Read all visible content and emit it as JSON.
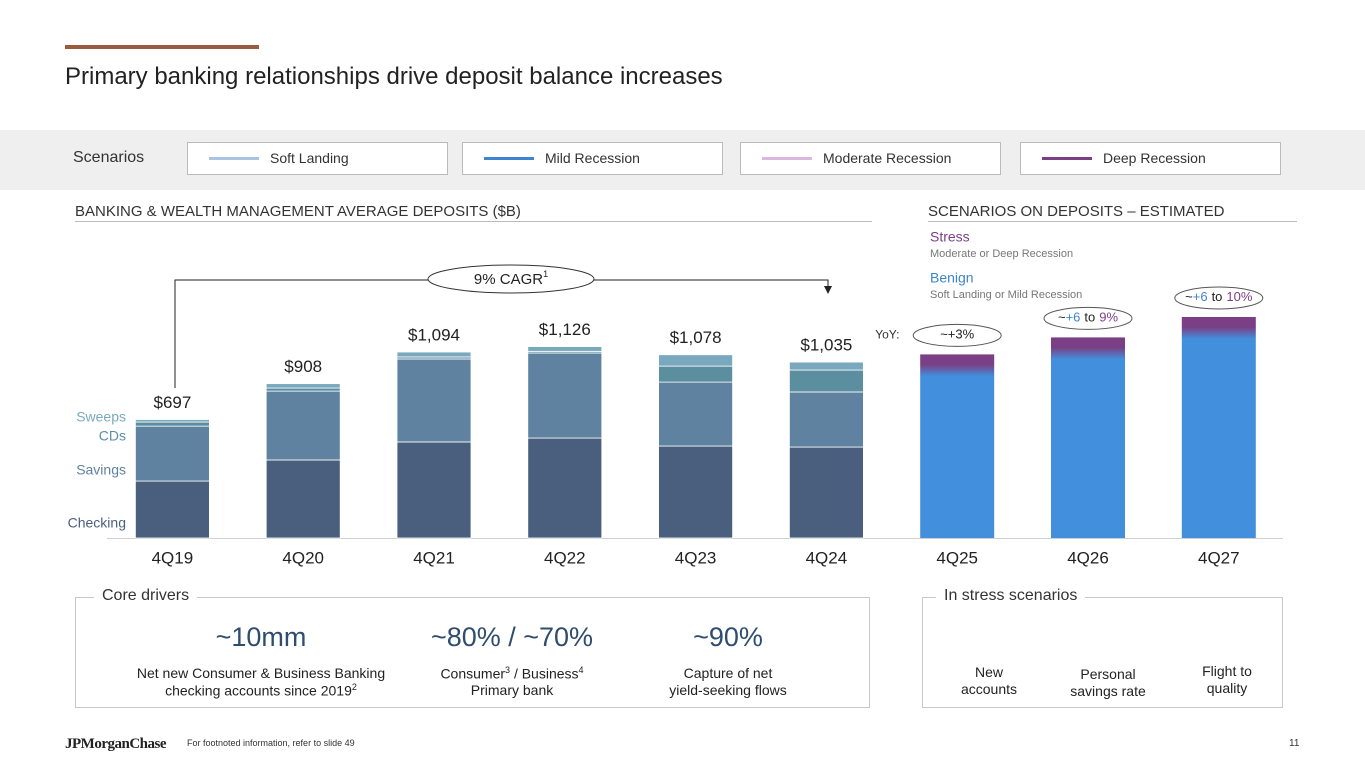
{
  "header": {
    "title": "Primary banking relationships drive deposit balance increases"
  },
  "scenarios": {
    "label": "Scenarios",
    "items": [
      {
        "name": "Soft Landing",
        "color": "#a9c4e0"
      },
      {
        "name": "Mild Recession",
        "color": "#3d85d0"
      },
      {
        "name": "Moderate Recession",
        "color": "#dbb6df"
      },
      {
        "name": "Deep Recession",
        "color": "#7b3f85"
      }
    ]
  },
  "chart_data": {
    "type": "bar",
    "stacked": true,
    "title": "BANKING & WEALTH MANAGEMENT AVERAGE DEPOSITS ($B)",
    "categories": [
      "4Q19",
      "4Q20",
      "4Q21",
      "4Q22",
      "4Q23",
      "4Q24",
      "4Q25",
      "4Q26",
      "4Q27"
    ],
    "series": [
      {
        "name": "Checking",
        "color": "#4a5f7e",
        "values": [
          335,
          459,
          565,
          588,
          541,
          535,
          null,
          null,
          null
        ]
      },
      {
        "name": "Savings",
        "color": "#5f82a0",
        "values": [
          323,
          405,
          488,
          500,
          376,
          324,
          null,
          null,
          null
        ]
      },
      {
        "name": "CDs",
        "color": "#5b8fa0",
        "values": [
          24,
          18,
          12,
          10,
          94,
          129,
          null,
          null,
          null
        ]
      },
      {
        "name": "Sweeps",
        "color": "#7aa9bf",
        "values": [
          15,
          26,
          29,
          28,
          67,
          47,
          null,
          null,
          null
        ]
      }
    ],
    "totals": {
      "values": [
        697,
        908,
        1094,
        1126,
        1078,
        1035,
        null,
        null,
        null
      ],
      "value_labels": [
        "$697",
        "$908",
        "$1,094",
        "$1,126",
        "$1,078",
        "$1,035",
        null,
        null,
        null
      ]
    },
    "projection": {
      "title": "SCENARIOS ON DEPOSITS – ESTIMATED",
      "color": "#4290dd",
      "stress_color": "#7b3f85",
      "values": [
        null,
        null,
        null,
        null,
        null,
        null,
        1080,
        1180,
        1300
      ],
      "yoy_label": "YoY:",
      "yoy": [
        null,
        null,
        null,
        null,
        null,
        null,
        [
          {
            "text": "~+3%"
          }
        ],
        [
          {
            "text": "~"
          },
          {
            "text": "+6",
            "color": "#3d85d0"
          },
          {
            "text": "to"
          },
          {
            "text": "9%",
            "color": "#7b3f85"
          }
        ],
        [
          {
            "text": "~"
          },
          {
            "text": "+6",
            "color": "#3d85d0"
          },
          {
            "text": "to"
          },
          {
            "text": "10%",
            "color": "#7b3f85"
          }
        ]
      ]
    },
    "annotation": {
      "text": "9% CAGR",
      "sup": "1"
    },
    "legend": [
      {
        "name": "Stress",
        "description": "Moderate or Deep Recession",
        "color": "#7b3f85"
      },
      {
        "name": "Benign",
        "description": "Soft Landing or Mild Recession",
        "color": "#3d85d0"
      }
    ]
  },
  "core_drivers": {
    "title": "Core drivers",
    "items": [
      {
        "value": "~10mm",
        "lines": [
          [
            {
              "t": "Net new Consumer & Business Banking"
            }
          ],
          [
            {
              "t": "checking accounts since 2019"
            },
            {
              "sup": "2"
            }
          ]
        ]
      },
      {
        "value": "~80% / ~70%",
        "lines": [
          [
            {
              "t": "Consumer"
            },
            {
              "sup": "3"
            },
            {
              "t": " / Business"
            },
            {
              "sup": "4"
            }
          ],
          [
            {
              "t": "Primary bank"
            }
          ]
        ]
      },
      {
        "value": "~90%",
        "lines": [
          [
            {
              "t": "Capture of net"
            }
          ],
          [
            {
              "t": "yield-seeking flows"
            }
          ]
        ]
      }
    ]
  },
  "stress": {
    "title": "In stress scenarios",
    "items": [
      {
        "lines": [
          "New",
          "accounts"
        ]
      },
      {
        "lines": [
          "Personal",
          "savings rate"
        ]
      },
      {
        "lines": [
          "Flight to",
          "quality"
        ]
      }
    ]
  },
  "footer": {
    "logo": "JPMorganChase",
    "note": "For footnoted information, refer to slide 49",
    "page": "11"
  }
}
